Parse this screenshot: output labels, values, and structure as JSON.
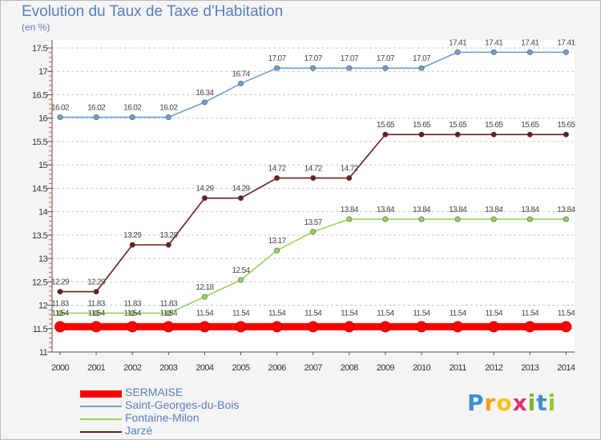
{
  "title": "Evolution du Taux de Taxe d'Habitation",
  "unit": "(en %)",
  "logo": "Proxiti",
  "chart_data": {
    "type": "line",
    "title": "Evolution du Taux de Taxe d'Habitation",
    "ylabel": "(en %)",
    "xlabel": "",
    "x": [
      "2000",
      "2001",
      "2002",
      "2003",
      "2004",
      "2005",
      "2006",
      "2007",
      "2008",
      "2009",
      "2010",
      "2011",
      "2012",
      "2013",
      "2014"
    ],
    "ylim": [
      11,
      17.5
    ],
    "yticks": [
      11,
      11.5,
      12,
      12.5,
      13,
      13.5,
      14,
      14.5,
      15,
      15.5,
      16,
      16.5,
      17,
      17.5
    ],
    "ytick_labels": [
      "11",
      "11.5",
      "12",
      "12.5",
      "13",
      "13.5",
      "14",
      "14.5",
      "15",
      "15.5",
      "16",
      "16.5",
      "17",
      "17.5"
    ],
    "grid": "horizontal dashed",
    "series": [
      {
        "name": "SERMAISE",
        "color": "#ff0000",
        "values": [
          11.54,
          11.54,
          11.54,
          11.54,
          11.54,
          11.54,
          11.54,
          11.54,
          11.54,
          11.54,
          11.54,
          11.54,
          11.54,
          11.54,
          11.54
        ],
        "labels": [
          "11.54",
          "11.54",
          "11.54",
          "11.54",
          "11.54",
          "11.54",
          "11.54",
          "11.54",
          "11.54",
          "11.54",
          "11.54",
          "11.54",
          "11.54",
          "11.54",
          "11.54"
        ]
      },
      {
        "name": "Saint-Georges-du-Bois",
        "color": "#6da0cf",
        "values": [
          16.02,
          16.02,
          16.02,
          16.02,
          16.34,
          16.74,
          17.07,
          17.07,
          17.07,
          17.07,
          17.07,
          17.41,
          17.41,
          17.41,
          17.41
        ],
        "labels": [
          "16.02",
          "16.02",
          "16.02",
          "16.02",
          "16.34",
          "16.74",
          "17.07",
          "17.07",
          "17.07",
          "17.07",
          "17.07",
          "17.41",
          "17.41",
          "17.41",
          "17.41"
        ]
      },
      {
        "name": "Fontaine-Milon",
        "color": "#99d35a",
        "values": [
          11.83,
          11.83,
          11.83,
          11.83,
          12.18,
          12.54,
          13.17,
          13.57,
          13.84,
          13.84,
          13.84,
          13.84,
          13.84,
          13.84,
          13.84
        ],
        "labels": [
          "11.83",
          "11.83",
          "11.83",
          "11.83",
          "12.18",
          "12.54",
          "13.17",
          "13.57",
          "13.84",
          "13.84",
          "13.84",
          "13.84",
          "13.84",
          "13.84",
          "13.84"
        ]
      },
      {
        "name": "Jarzé",
        "color": "#6b1d1d",
        "values": [
          12.29,
          12.29,
          13.29,
          13.29,
          14.29,
          14.29,
          14.72,
          14.72,
          14.72,
          15.65,
          15.65,
          15.65,
          15.65,
          15.65,
          15.65
        ],
        "labels": [
          "12.29",
          "12.29",
          "13.29",
          "13.29",
          "14.29",
          "14.29",
          "14.72",
          "14.72",
          "14.72",
          "15.65",
          "15.65",
          "15.65",
          "15.65",
          "15.65",
          "15.65"
        ]
      }
    ]
  }
}
